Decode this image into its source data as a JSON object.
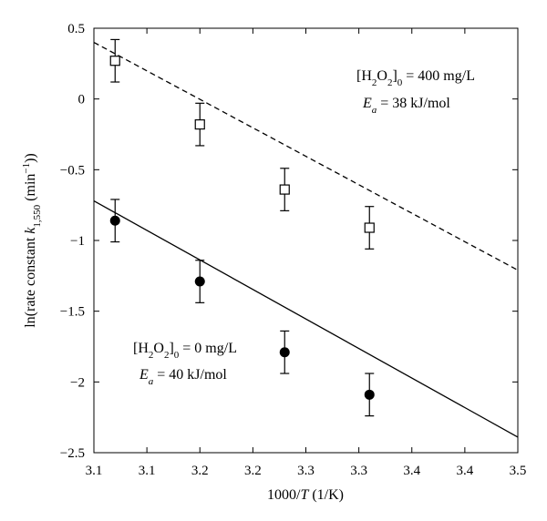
{
  "chart_data": {
    "type": "scatter",
    "x_label_prefix": "1000/",
    "x_label_var": "T",
    "x_label_suffix": " (1/K)",
    "y_label_prefix": "ln(rate constant ",
    "y_label_var": "k",
    "y_label_sub": "1,550",
    "y_label_unit_open": " (min",
    "y_label_unit_sup": "−1",
    "y_label_unit_close": "))",
    "xlim": [
      3.1,
      3.5
    ],
    "ylim": [
      -2.5,
      0.5
    ],
    "x_ticks": [
      3.1,
      3.15,
      3.2,
      3.25,
      3.3,
      3.35,
      3.4,
      3.45,
      3.5
    ],
    "x_tick_labels": [
      "3.1",
      "3.1",
      "3.2",
      "3.2",
      "3.3",
      "3.3",
      "3.4",
      "3.4",
      "3.5"
    ],
    "y_ticks": [
      0.5,
      0,
      -0.5,
      -1,
      -1.5,
      -2,
      -2.5
    ],
    "y_tick_labels": [
      "0.5",
      "0",
      "−0.5",
      "−1",
      "−1.5",
      "−2",
      "−2.5"
    ],
    "grid": false,
    "series": [
      {
        "marker": "open-square",
        "line_style": "dashed",
        "color": "#000000",
        "x": [
          3.12,
          3.2,
          3.28,
          3.36
        ],
        "y": [
          0.27,
          -0.18,
          -0.64,
          -0.91
        ],
        "err": [
          0.15,
          0.15,
          0.15,
          0.15
        ],
        "fit": {
          "x": [
            3.1,
            3.5
          ],
          "y": [
            0.4,
            -1.21
          ]
        },
        "annotation": {
          "open": "[H",
          "sub1": "2",
          "mid": "O",
          "sub2": "2",
          "close": "]",
          "sub3": "0",
          "value": " = 400 mg/L",
          "ea_var": "E",
          "ea_sub": "a",
          "ea_value": " = 38 kJ/mol"
        }
      },
      {
        "marker": "filled-circle",
        "line_style": "solid",
        "color": "#000000",
        "x": [
          3.12,
          3.2,
          3.28,
          3.36
        ],
        "y": [
          -0.86,
          -1.29,
          -1.79,
          -2.09
        ],
        "err": [
          0.15,
          0.15,
          0.15,
          0.15
        ],
        "fit": {
          "x": [
            3.1,
            3.5
          ],
          "y": [
            -0.72,
            -2.39
          ]
        },
        "annotation": {
          "open": "[H",
          "sub1": "2",
          "mid": "O",
          "sub2": "2",
          "close": "]",
          "sub3": "0",
          "value": " = 0 mg/L",
          "ea_var": "E",
          "ea_sub": "a",
          "ea_value": " = 40 kJ/mol"
        }
      }
    ]
  }
}
